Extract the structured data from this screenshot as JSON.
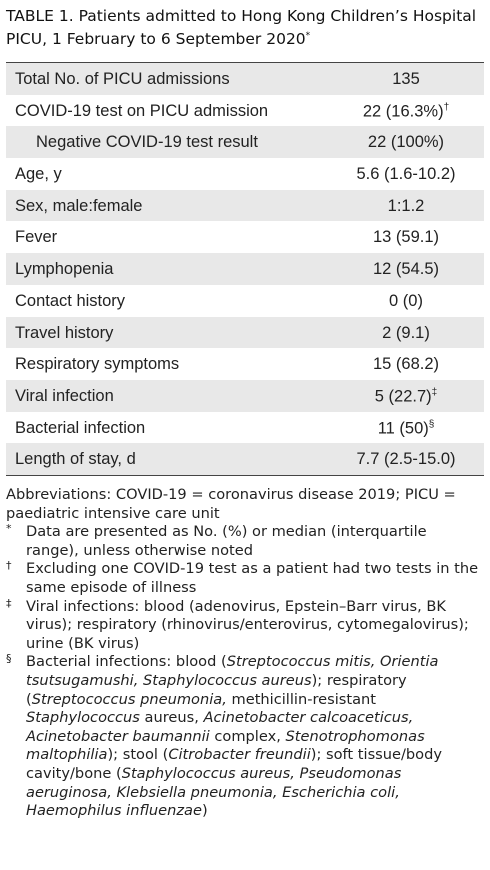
{
  "title": {
    "text": "TABLE 1. Patients admitted to Hong Kong Children’s Hospital PICU, 1 February to 6 September 2020",
    "note": "*"
  },
  "table": {
    "rows": [
      {
        "label": "Total No. of PICU admissions",
        "value": "135"
      },
      {
        "label": "COVID-19 test on PICU admission",
        "value": "22 (16.3%)",
        "note": "†"
      },
      {
        "label": "Negative COVID-19 test result",
        "value": "22 (100%)",
        "indent": true
      },
      {
        "label": "Age, y",
        "value": "5.6 (1.6-10.2)"
      },
      {
        "label": "Sex, male:female",
        "value": "1:1.2"
      },
      {
        "label": "Fever",
        "value": "13 (59.1)"
      },
      {
        "label": "Lymphopenia",
        "value": "12 (54.5)"
      },
      {
        "label": "Contact history",
        "value": "0 (0)"
      },
      {
        "label": "Travel history",
        "value": "2 (9.1)"
      },
      {
        "label": "Respiratory symptoms",
        "value": "15 (68.2)"
      },
      {
        "label": "Viral infection",
        "value": "5 (22.7)",
        "note": "‡"
      },
      {
        "label": "Bacterial infection",
        "value": "11 (50)",
        "note": "§"
      },
      {
        "label": "Length of stay, d",
        "value": "7.7 (2.5-15.0)"
      }
    ]
  },
  "abbreviations": "Abbreviations: COVID-19 = coronavirus disease 2019; PICU = paediatric intensive care unit",
  "footnotes": [
    {
      "marker": "*",
      "parts": [
        {
          "text": "Data are presented as No. (%) or median (interquartile range), unless otherwise noted"
        }
      ]
    },
    {
      "marker": "†",
      "parts": [
        {
          "text": "Excluding one COVID-19 test as a patient had two tests in the same episode of illness"
        }
      ]
    },
    {
      "marker": "‡",
      "parts": [
        {
          "text": "Viral infections: blood (adenovirus, Epstein–Barr virus, BK virus); respiratory (rhinovirus/enterovirus, cytomegalovirus); urine (BK virus)"
        }
      ]
    },
    {
      "marker": "§",
      "parts": [
        {
          "text": "Bacterial infections: blood ("
        },
        {
          "text": "Streptococcus mitis, Orientia tsutsugamushi, Staphylococcus aureus",
          "italic": true
        },
        {
          "text": "); respiratory ("
        },
        {
          "text": "Streptococcus pneumonia,",
          "italic": true
        },
        {
          "text": " methicillin-resistant "
        },
        {
          "text": "Staphylococcus",
          "italic": true
        },
        {
          "text": " aureus, "
        },
        {
          "text": "Acinetobacter calcoaceticus, Acinetobacter baumannii",
          "italic": true
        },
        {
          "text": " complex, "
        },
        {
          "text": "Stenotrophomonas maltophilia",
          "italic": true
        },
        {
          "text": "); stool ("
        },
        {
          "text": "Citrobacter freundii",
          "italic": true
        },
        {
          "text": "); soft tissue/body cavity/bone ("
        },
        {
          "text": "Staphylococcus aureus, Pseudomonas aeruginosa, Klebsiella pneumonia, Escherichia coli, Haemophilus influenzae",
          "italic": true
        },
        {
          "text": ")"
        }
      ]
    }
  ]
}
